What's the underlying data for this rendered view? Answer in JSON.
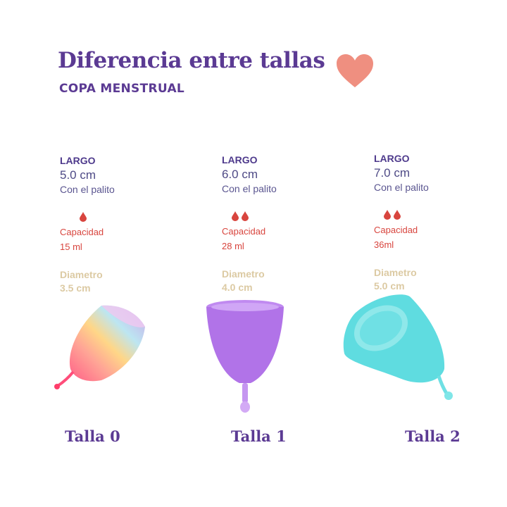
{
  "header": {
    "title": "Diferencia entre tallas",
    "subtitle": "COPA MENSTRUAL",
    "heart_color": "#ef8f80",
    "heart_icon": "heart-icon"
  },
  "colors": {
    "primary": "#5b3a93",
    "capacity": "#d8453e",
    "diameter": "#dccaa3"
  },
  "sizes": [
    {
      "largo_label": "LARGO",
      "length": "5.0 cm",
      "length_note": "Con el palito",
      "drops": 1,
      "capacity_label": "Capacidad",
      "capacity": "15 ml",
      "diameter_label": "Diametro",
      "diameter": "3.5 cm",
      "name": "Talla 0",
      "cup_color": "rainbow"
    },
    {
      "largo_label": "LARGO",
      "length": "6.0 cm",
      "length_note": "Con el palito",
      "drops": 2,
      "capacity_label": "Capacidad",
      "capacity": "28 ml",
      "diameter_label": "Diametro",
      "diameter": "4.0 cm",
      "name": "Talla 1",
      "cup_color": "#b173e8"
    },
    {
      "largo_label": "LARGO",
      "length": "7.0 cm",
      "length_note": "Con el palito",
      "drops": 2,
      "capacity_label": "Capacidad",
      "capacity": "36ml",
      "diameter_label": "Diametro",
      "diameter": "5.0 cm",
      "name": "Talla 2",
      "cup_color": "#5fdce0"
    }
  ]
}
